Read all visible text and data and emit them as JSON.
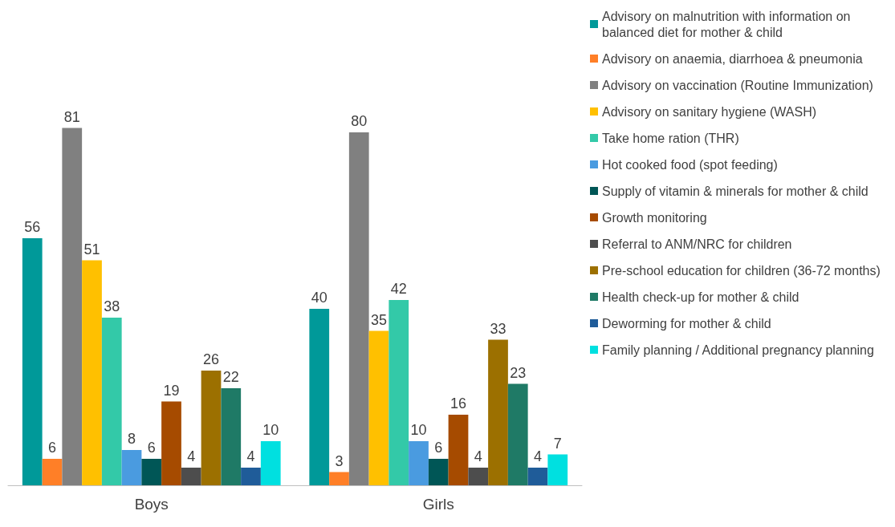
{
  "chart_data": {
    "type": "bar",
    "categories": [
      "Boys",
      "Girls"
    ],
    "series": [
      {
        "name": "Advisory on malnutrition with information on balanced diet for mother & child",
        "color": "#009999",
        "values": [
          56,
          40
        ]
      },
      {
        "name": "Advisory on anaemia, diarrhoea & pneumonia",
        "color": "#ff7f27",
        "values": [
          6,
          3
        ]
      },
      {
        "name": "Advisory on vaccination (Routine Immunization)",
        "color": "#808080",
        "values": [
          81,
          80
        ]
      },
      {
        "name": "Advisory on sanitary hygiene (WASH)",
        "color": "#ffc000",
        "values": [
          51,
          35
        ]
      },
      {
        "name": "Take home ration (THR)",
        "color": "#33c9a8",
        "values": [
          38,
          42
        ]
      },
      {
        "name": "Hot cooked food (spot feeding)",
        "color": "#4a9be0",
        "values": [
          8,
          10
        ]
      },
      {
        "name": "Supply of vitamin & minerals for mother & child",
        "color": "#005656",
        "values": [
          6,
          6
        ]
      },
      {
        "name": "Growth monitoring",
        "color": "#a64b00",
        "values": [
          19,
          16
        ]
      },
      {
        "name": "Referral to ANM/NRC for children",
        "color": "#4d4d4d",
        "values": [
          4,
          4
        ]
      },
      {
        "name": "Pre-school education for children (36-72 months)",
        "color": "#9c7000",
        "values": [
          26,
          33
        ]
      },
      {
        "name": "Health check-up for mother & child",
        "color": "#1f7a66",
        "values": [
          22,
          23
        ]
      },
      {
        "name": "Deworming for mother & child",
        "color": "#1f5c99",
        "values": [
          4,
          4
        ]
      },
      {
        "name": "Family planning / Additional pregnancy planning",
        "color": "#00e0e0",
        "values": [
          10,
          7
        ]
      }
    ],
    "data_labels": true,
    "legend": "right",
    "grid": false
  }
}
